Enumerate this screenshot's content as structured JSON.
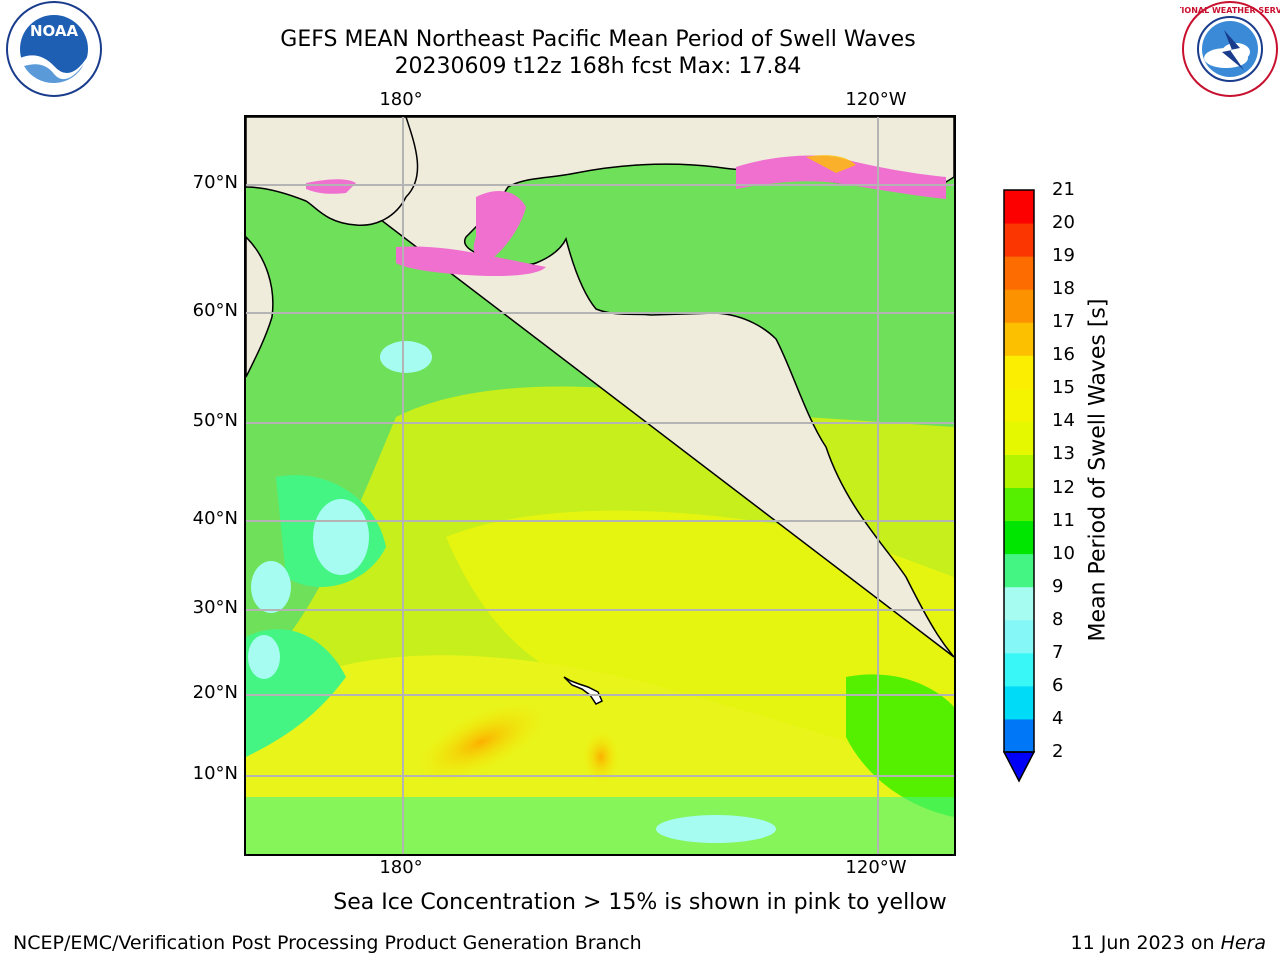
{
  "title": {
    "line1": "GEFS MEAN Northeast Pacific Mean Period of Swell Waves",
    "line2": "20230609 t12z 168h fcst   Max: 17.84"
  },
  "map": {
    "lon_labels_top": [
      "180°",
      "120°W"
    ],
    "lon_labels_bottom": [
      "180°",
      "120°W"
    ],
    "lat_labels": [
      "70°N",
      "60°N",
      "50°N",
      "40°N",
      "30°N",
      "20°N",
      "10°N"
    ],
    "land_color": "#efecdc",
    "grid_color": "#b4b4b4"
  },
  "colorbar": {
    "title": "Mean Period of Swell Waves [s]",
    "tick_labels": [
      "2",
      "4",
      "6",
      "7",
      "8",
      "9",
      "10",
      "11",
      "12",
      "13",
      "14",
      "15",
      "16",
      "17",
      "18",
      "19",
      "20",
      "21"
    ],
    "colors": [
      "#0077f7",
      "#00dcf7",
      "#39f7f7",
      "#85f7f7",
      "#a6fcf1",
      "#44f584",
      "#00e600",
      "#55f000",
      "#b3f400",
      "#e5f800",
      "#f4f400",
      "#fcee00",
      "#fcc000",
      "#fc9200",
      "#fc6c00",
      "#fc3600",
      "#fc0000"
    ],
    "extend_color": "#0000f7"
  },
  "logos": {
    "noaa_text": "NOAA",
    "nws_text": "NATIONAL WEATHER SERVICE"
  },
  "note": "Sea Ice Concentration > 15% is shown in pink to yellow",
  "footer": {
    "left": "NCEP/EMC/Verification Post Processing Product Generation Branch",
    "right_prefix": "11 Jun 2023 on ",
    "right_machine": "Hera"
  }
}
